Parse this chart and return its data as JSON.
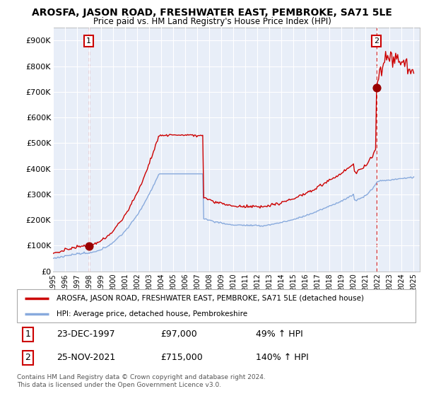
{
  "title": "AROSFA, JASON ROAD, FRESHWATER EAST, PEMBROKE, SA71 5LE",
  "subtitle": "Price paid vs. HM Land Registry's House Price Index (HPI)",
  "yticks": [
    0,
    100000,
    200000,
    300000,
    400000,
    500000,
    600000,
    700000,
    800000,
    900000
  ],
  "ytick_labels": [
    "£0",
    "£100K",
    "£200K",
    "£300K",
    "£400K",
    "£500K",
    "£600K",
    "£700K",
    "£800K",
    "£900K"
  ],
  "ylim": [
    0,
    950000
  ],
  "xlim_start": 1995.0,
  "xlim_end": 2025.5,
  "sale1_x": 1997.97,
  "sale1_y": 97000,
  "sale1_label": "1",
  "sale1_date": "23-DEC-1997",
  "sale1_price": "£97,000",
  "sale1_hpi": "49% ↑ HPI",
  "sale2_x": 2021.9,
  "sale2_y": 715000,
  "sale2_label": "2",
  "sale2_date": "25-NOV-2021",
  "sale2_price": "£715,000",
  "sale2_hpi": "140% ↑ HPI",
  "line_color_property": "#cc0000",
  "line_color_hpi": "#88aadd",
  "dot_color_property": "#990000",
  "legend_property": "AROSFA, JASON ROAD, FRESHWATER EAST, PEMBROKE, SA71 5LE (detached house)",
  "legend_hpi": "HPI: Average price, detached house, Pembrokeshire",
  "footnote": "Contains HM Land Registry data © Crown copyright and database right 2024.\nThis data is licensed under the Open Government Licence v3.0.",
  "background_color": "#ffffff",
  "plot_bg_color": "#e8eef8",
  "grid_color": "#ffffff"
}
